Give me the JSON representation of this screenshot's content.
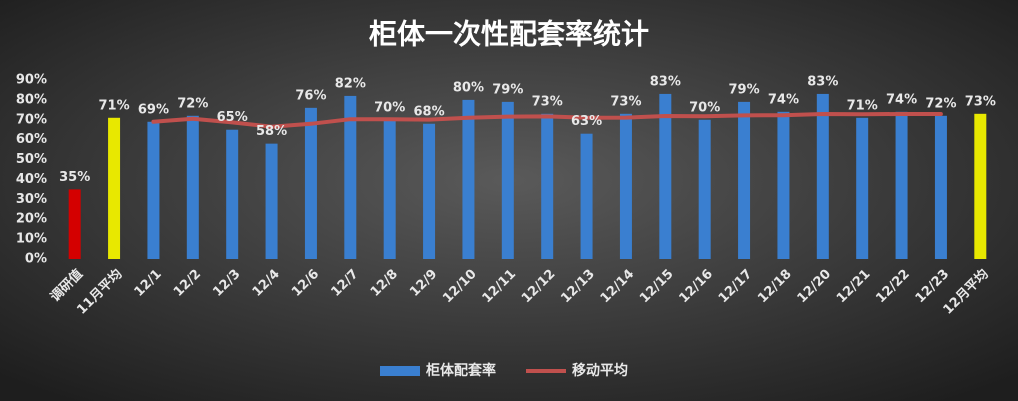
{
  "chart_data": {
    "type": "bar",
    "title": "柜体一次性配套率统计",
    "categories": [
      "调研值",
      "11月平均",
      "12/1",
      "12/2",
      "12/3",
      "12/4",
      "12/6",
      "12/7",
      "12/8",
      "12/9",
      "12/10",
      "12/11",
      "12/12",
      "12/13",
      "12/14",
      "12/15",
      "12/16",
      "12/17",
      "12/18",
      "12/20",
      "12/21",
      "12/22",
      "12/23",
      "12月平均"
    ],
    "series": [
      {
        "name": "柜体配套率",
        "type": "bar",
        "color": "#3a7fd0",
        "point_colors": [
          "#d40000",
          "#e8e800",
          "#3a7fd0",
          "#3a7fd0",
          "#3a7fd0",
          "#3a7fd0",
          "#3a7fd0",
          "#3a7fd0",
          "#3a7fd0",
          "#3a7fd0",
          "#3a7fd0",
          "#3a7fd0",
          "#3a7fd0",
          "#3a7fd0",
          "#3a7fd0",
          "#3a7fd0",
          "#3a7fd0",
          "#3a7fd0",
          "#3a7fd0",
          "#3a7fd0",
          "#3a7fd0",
          "#3a7fd0",
          "#3a7fd0",
          "#e8e800"
        ],
        "values": [
          35,
          71,
          69,
          72,
          65,
          58,
          76,
          82,
          70,
          68,
          80,
          79,
          73,
          63,
          73,
          83,
          70,
          79,
          74,
          83,
          71,
          74,
          72,
          73
        ],
        "value_labels": [
          "35%",
          "71%",
          "69%",
          "72%",
          "65%",
          "58%",
          "76%",
          "82%",
          "70%",
          "68%",
          "80%",
          "79%",
          "73%",
          "63%",
          "73%",
          "83%",
          "70%",
          "79%",
          "74%",
          "83%",
          "71%",
          "74%",
          "72%",
          "73%"
        ]
      },
      {
        "name": "移动平均",
        "type": "line",
        "color": "#c0504d",
        "values": [
          null,
          null,
          69,
          70.5,
          68.7,
          66.5,
          68,
          70.3,
          70.3,
          70.1,
          71,
          71.6,
          71.7,
          71,
          71.1,
          71.9,
          71.8,
          72.2,
          72.3,
          72.9,
          72.8,
          72.9,
          72.9,
          null
        ]
      }
    ],
    "ylim": [
      0,
      90
    ],
    "yticks": [
      {
        "value": 0,
        "label": "0%"
      },
      {
        "value": 10,
        "label": "10%"
      },
      {
        "value": 20,
        "label": "20%"
      },
      {
        "value": 30,
        "label": "30%"
      },
      {
        "value": 40,
        "label": "40%"
      },
      {
        "value": 50,
        "label": "50%"
      },
      {
        "value": 60,
        "label": "60%"
      },
      {
        "value": 70,
        "label": "70%"
      },
      {
        "value": 80,
        "label": "80%"
      },
      {
        "value": 90,
        "label": "90%"
      }
    ],
    "grid": false,
    "legend": "bottom"
  }
}
